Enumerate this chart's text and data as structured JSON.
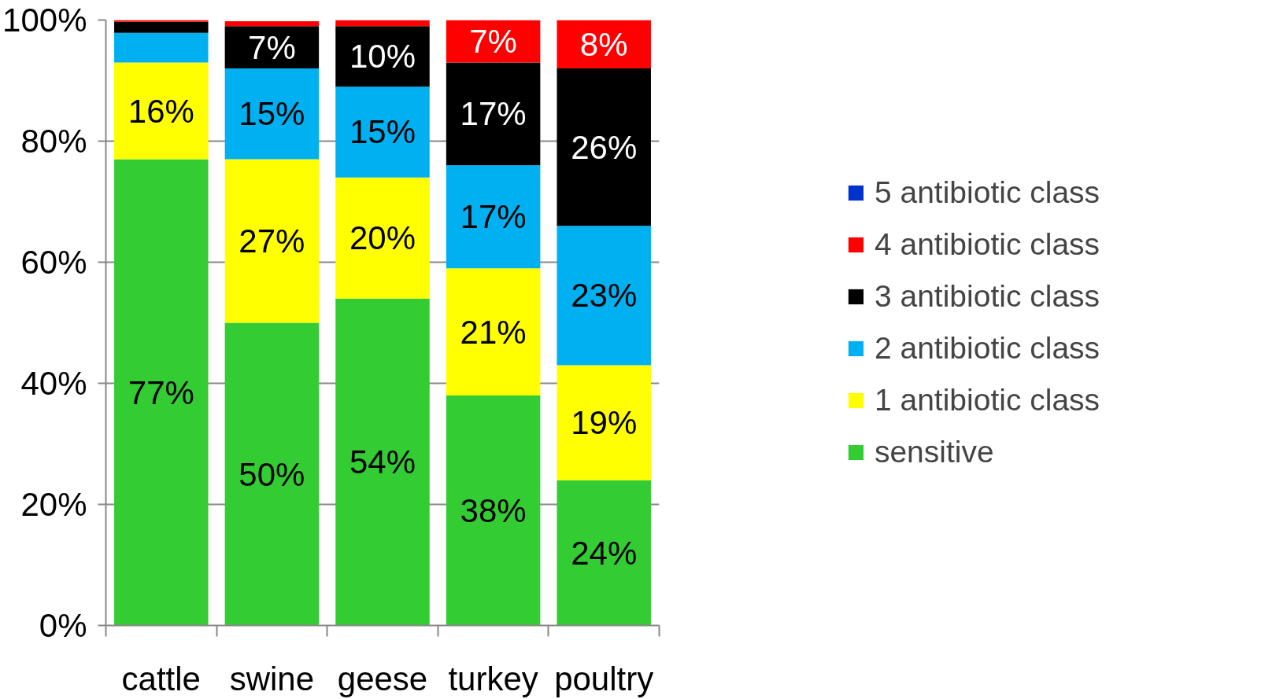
{
  "chart_data": {
    "type": "bar",
    "stacked": true,
    "categories": [
      "cattle",
      "swine",
      "geese",
      "turkey",
      "poultry"
    ],
    "series": [
      {
        "name": "sensitive",
        "color": "#33cc33",
        "values": [
          77,
          50,
          54,
          38,
          24
        ],
        "value_labels": [
          "77%",
          "50%",
          "54%",
          "38%",
          "24%"
        ]
      },
      {
        "name": "1 antibiotic class",
        "color": "#ffff00",
        "values": [
          16,
          27,
          20,
          21,
          19
        ],
        "value_labels": [
          "16%",
          "27%",
          "20%",
          "21%",
          "19%"
        ]
      },
      {
        "name": "2 antibiotic class",
        "color": "#00b0f0",
        "values": [
          4.9,
          15,
          15,
          17,
          23
        ],
        "value_labels": [
          null,
          "15%",
          "15%",
          "17%",
          "23%"
        ]
      },
      {
        "name": "3 antibiotic class",
        "color": "#000000",
        "values": [
          1.8,
          7,
          10,
          17,
          26
        ],
        "value_labels": [
          null,
          "7%",
          "10%",
          "17%",
          "26%"
        ]
      },
      {
        "name": "4 antibiotic class",
        "color": "#ff0000",
        "values": [
          0.3,
          0.8,
          1,
          7,
          8
        ],
        "value_labels": [
          null,
          null,
          null,
          "7%",
          "8%"
        ]
      },
      {
        "name": "5 antibiotic class",
        "color": "#0033cc",
        "values": [
          0,
          0,
          0,
          0,
          0
        ],
        "value_labels": [
          null,
          null,
          null,
          null,
          null
        ]
      }
    ],
    "ylim": [
      0,
      100
    ],
    "yticks": [
      {
        "value": 0,
        "label": "0%"
      },
      {
        "value": 20,
        "label": "20%"
      },
      {
        "value": 40,
        "label": "40%"
      },
      {
        "value": 60,
        "label": "60%"
      },
      {
        "value": 80,
        "label": "80%"
      },
      {
        "value": 100,
        "label": "100%"
      }
    ],
    "grid": "y",
    "legend": "right"
  }
}
